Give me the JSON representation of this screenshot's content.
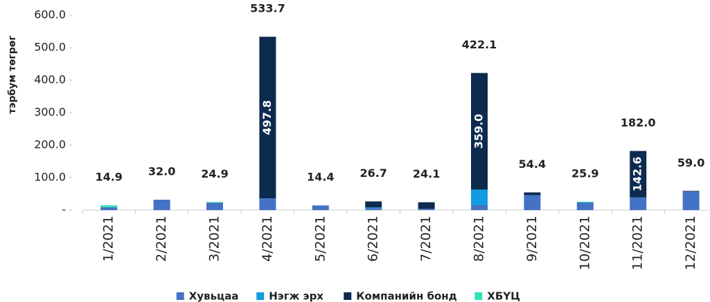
{
  "chart_data": {
    "type": "stacked_bar",
    "y_label": "тэрбум төгрөг",
    "categories": [
      "1/2021",
      "2/2021",
      "3/2021",
      "4/2021",
      "5/2021",
      "6/2021",
      "7/2021",
      "8/2021",
      "9/2021",
      "10/2021",
      "11/2021",
      "12/2021"
    ],
    "series": [
      {
        "name": "Хувьцаа",
        "color": "#4472c4",
        "values": [
          9,
          32.0,
          23,
          35,
          14.4,
          6,
          4,
          15,
          46,
          24,
          39.4,
          57
        ]
      },
      {
        "name": "Нэгж эрх",
        "color": "#119be0",
        "values": [
          0,
          0,
          0,
          0.9,
          0,
          2,
          0,
          48.1,
          0,
          0,
          0,
          0
        ]
      },
      {
        "name": "Компанийн бонд",
        "color": "#0d2a4f",
        "values": [
          0,
          0,
          0,
          497.8,
          0,
          18.7,
          20.1,
          359.0,
          8.4,
          0,
          142.6,
          2
        ],
        "value_labels": [
          null,
          null,
          null,
          "497.8",
          null,
          null,
          null,
          "359.0",
          null,
          null,
          "142.6",
          null
        ]
      },
      {
        "name": "ХБҮЦ",
        "color": "#2ee3b5",
        "values": [
          5.9,
          0,
          1.9,
          0,
          0,
          0,
          0,
          0,
          0,
          1.9,
          0,
          0
        ]
      }
    ],
    "totals": [
      14.9,
      32.0,
      24.9,
      533.7,
      14.4,
      26.7,
      24.1,
      422.1,
      54.4,
      25.9,
      182.0,
      59.0
    ],
    "total_labels": [
      "14.9",
      "32.0",
      "24.9",
      "533.7",
      "14.4",
      "26.7",
      "24.1",
      "422.1",
      "54.4",
      "25.9",
      "182.0",
      "59.0"
    ],
    "ylim": [
      0,
      600
    ],
    "yticks": [
      {
        "value": 0,
        "label": "-"
      },
      {
        "value": 100,
        "label": "100.0"
      },
      {
        "value": 200,
        "label": "200.0"
      },
      {
        "value": 300,
        "label": "300.0"
      },
      {
        "value": 400,
        "label": "400.0"
      },
      {
        "value": 500,
        "label": "500.0"
      },
      {
        "value": 600,
        "label": "600.0"
      }
    ],
    "legend": "bottom"
  }
}
